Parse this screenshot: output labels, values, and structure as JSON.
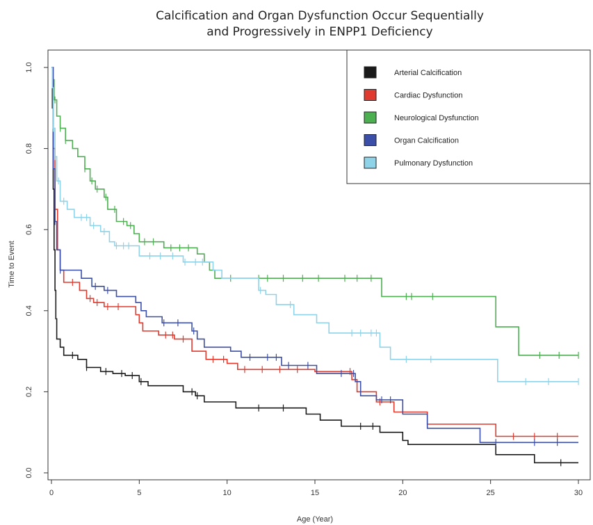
{
  "chart_data": {
    "type": "line",
    "title_line1": "Calcification and Organ Dysfunction Occur Sequentially",
    "title_line2": "and Progressively in ENPP1 Deficiency",
    "xlabel": "Age (Year)",
    "ylabel": "Time to Event",
    "xlim": [
      0,
      30
    ],
    "ylim": [
      0,
      1
    ],
    "x_ticks": [
      0,
      5,
      10,
      15,
      20,
      25,
      30
    ],
    "y_ticks": [
      0.0,
      0.2,
      0.4,
      0.6,
      0.8,
      1.0
    ],
    "x_tick_labels": [
      "0",
      "5",
      "10",
      "15",
      "20",
      "25",
      "30"
    ],
    "y_tick_labels": [
      "0.0",
      "0.2",
      "0.4",
      "0.6",
      "0.8",
      "1.0"
    ],
    "grid": false,
    "legend_position": "top-right",
    "step": true,
    "series": [
      {
        "name": "Arterial Calcification",
        "color": "#1a1a1a",
        "points": [
          [
            0,
            1.0
          ],
          [
            0.05,
            0.9
          ],
          [
            0.1,
            0.7
          ],
          [
            0.15,
            0.55
          ],
          [
            0.2,
            0.45
          ],
          [
            0.25,
            0.38
          ],
          [
            0.3,
            0.33
          ],
          [
            0.5,
            0.31
          ],
          [
            0.7,
            0.29
          ],
          [
            1.5,
            0.28
          ],
          [
            2.0,
            0.26
          ],
          [
            2.8,
            0.25
          ],
          [
            3.5,
            0.245
          ],
          [
            4.2,
            0.24
          ],
          [
            5.0,
            0.225
          ],
          [
            5.5,
            0.215
          ],
          [
            7.5,
            0.2
          ],
          [
            8.2,
            0.19
          ],
          [
            8.7,
            0.175
          ],
          [
            10.5,
            0.16
          ],
          [
            14.5,
            0.145
          ],
          [
            15.3,
            0.13
          ],
          [
            16.5,
            0.115
          ],
          [
            18.7,
            0.1
          ],
          [
            20.0,
            0.08
          ],
          [
            20.3,
            0.07
          ],
          [
            25.3,
            0.045
          ],
          [
            27.5,
            0.025
          ],
          [
            30.0,
            0.025
          ]
        ],
        "censored_x": [
          1.2,
          2.0,
          3.1,
          4.0,
          4.6,
          5.1,
          8.0,
          8.3,
          11.8,
          13.2,
          17.6,
          18.3,
          29.0
        ]
      },
      {
        "name": "Cardiac Dysfunction",
        "color": "#e0392d",
        "points": [
          [
            0,
            1.0
          ],
          [
            0.1,
            0.8
          ],
          [
            0.2,
            0.65
          ],
          [
            0.35,
            0.55
          ],
          [
            0.5,
            0.5
          ],
          [
            0.7,
            0.47
          ],
          [
            1.6,
            0.45
          ],
          [
            2.0,
            0.43
          ],
          [
            2.4,
            0.42
          ],
          [
            3.0,
            0.41
          ],
          [
            4.8,
            0.39
          ],
          [
            5.0,
            0.37
          ],
          [
            5.2,
            0.35
          ],
          [
            6.1,
            0.34
          ],
          [
            7.0,
            0.33
          ],
          [
            8.0,
            0.3
          ],
          [
            8.8,
            0.28
          ],
          [
            10.0,
            0.27
          ],
          [
            10.6,
            0.255
          ],
          [
            15.0,
            0.25
          ],
          [
            17.1,
            0.23
          ],
          [
            17.4,
            0.2
          ],
          [
            18.5,
            0.175
          ],
          [
            19.5,
            0.15
          ],
          [
            21.4,
            0.12
          ],
          [
            25.3,
            0.09
          ],
          [
            30.0,
            0.09
          ]
        ],
        "censored_x": [
          1.2,
          2.2,
          2.6,
          3.2,
          3.8,
          6.5,
          6.9,
          7.5,
          9.2,
          9.8,
          11.0,
          12.0,
          13.0,
          14.0,
          17.0,
          18.7,
          26.3,
          27.5,
          28.8
        ]
      },
      {
        "name": "Neurological Dysfunction",
        "color": "#4caf50",
        "points": [
          [
            0,
            1.0
          ],
          [
            0.05,
            0.97
          ],
          [
            0.15,
            0.92
          ],
          [
            0.3,
            0.88
          ],
          [
            0.5,
            0.85
          ],
          [
            0.8,
            0.82
          ],
          [
            1.2,
            0.8
          ],
          [
            1.5,
            0.78
          ],
          [
            1.9,
            0.75
          ],
          [
            2.2,
            0.72
          ],
          [
            2.5,
            0.7
          ],
          [
            3.0,
            0.68
          ],
          [
            3.2,
            0.65
          ],
          [
            3.7,
            0.62
          ],
          [
            4.3,
            0.61
          ],
          [
            4.7,
            0.59
          ],
          [
            5.0,
            0.57
          ],
          [
            6.4,
            0.555
          ],
          [
            8.3,
            0.54
          ],
          [
            8.7,
            0.52
          ],
          [
            9.0,
            0.5
          ],
          [
            9.3,
            0.48
          ],
          [
            18.8,
            0.435
          ],
          [
            25.3,
            0.36
          ],
          [
            26.6,
            0.29
          ],
          [
            30.0,
            0.29
          ]
        ],
        "censored_x": [
          0.1,
          0.2,
          0.5,
          0.8,
          1.9,
          2.3,
          2.6,
          3.1,
          3.6,
          4.1,
          4.5,
          5.3,
          5.8,
          6.8,
          7.3,
          7.8,
          10.2,
          11.8,
          12.3,
          13.2,
          14.3,
          15.2,
          16.7,
          17.4,
          18.2,
          20.2,
          20.5,
          21.7,
          27.8,
          28.9,
          30.0
        ]
      },
      {
        "name": "Organ Calcification",
        "color": "#3b4ea8",
        "points": [
          [
            0,
            1.0
          ],
          [
            0.1,
            0.75
          ],
          [
            0.2,
            0.62
          ],
          [
            0.3,
            0.55
          ],
          [
            0.5,
            0.5
          ],
          [
            1.3,
            0.5
          ],
          [
            1.7,
            0.48
          ],
          [
            2.3,
            0.46
          ],
          [
            3.0,
            0.45
          ],
          [
            3.7,
            0.435
          ],
          [
            4.8,
            0.42
          ],
          [
            5.1,
            0.4
          ],
          [
            5.4,
            0.385
          ],
          [
            6.3,
            0.37
          ],
          [
            8.0,
            0.35
          ],
          [
            8.3,
            0.33
          ],
          [
            8.7,
            0.31
          ],
          [
            10.2,
            0.3
          ],
          [
            10.8,
            0.285
          ],
          [
            13.1,
            0.265
          ],
          [
            15.1,
            0.245
          ],
          [
            17.3,
            0.225
          ],
          [
            17.6,
            0.19
          ],
          [
            18.5,
            0.18
          ],
          [
            20.0,
            0.145
          ],
          [
            21.4,
            0.11
          ],
          [
            24.4,
            0.075
          ],
          [
            30.0,
            0.075
          ]
        ],
        "censored_x": [
          0.2,
          0.5,
          2.5,
          3.2,
          6.4,
          7.2,
          8.1,
          11.3,
          12.3,
          12.8,
          13.5,
          14.6,
          16.5,
          17.2,
          18.8,
          19.3,
          25.3,
          27.5,
          28.8
        ]
      },
      {
        "name": "Pulmonary Dysfunction",
        "color": "#8fd3e8",
        "points": [
          [
            0,
            1.0
          ],
          [
            0.05,
            0.95
          ],
          [
            0.1,
            0.85
          ],
          [
            0.2,
            0.78
          ],
          [
            0.3,
            0.72
          ],
          [
            0.5,
            0.67
          ],
          [
            0.9,
            0.65
          ],
          [
            1.3,
            0.63
          ],
          [
            2.2,
            0.61
          ],
          [
            2.8,
            0.595
          ],
          [
            3.3,
            0.57
          ],
          [
            3.6,
            0.56
          ],
          [
            5.0,
            0.535
          ],
          [
            7.5,
            0.52
          ],
          [
            9.2,
            0.5
          ],
          [
            9.7,
            0.48
          ],
          [
            11.8,
            0.45
          ],
          [
            12.2,
            0.44
          ],
          [
            12.8,
            0.415
          ],
          [
            13.8,
            0.39
          ],
          [
            15.1,
            0.37
          ],
          [
            15.8,
            0.345
          ],
          [
            18.7,
            0.31
          ],
          [
            19.3,
            0.28
          ],
          [
            25.4,
            0.225
          ],
          [
            30.0,
            0.225
          ]
        ],
        "censored_x": [
          0.1,
          0.2,
          0.4,
          0.7,
          1.7,
          2.0,
          2.4,
          3.0,
          3.7,
          4.1,
          4.4,
          5.6,
          6.2,
          6.9,
          7.6,
          8.2,
          8.6,
          11.9,
          13.6,
          17.1,
          17.6,
          18.2,
          18.5,
          20.2,
          21.6,
          27.0,
          28.3,
          30.0
        ]
      }
    ]
  }
}
